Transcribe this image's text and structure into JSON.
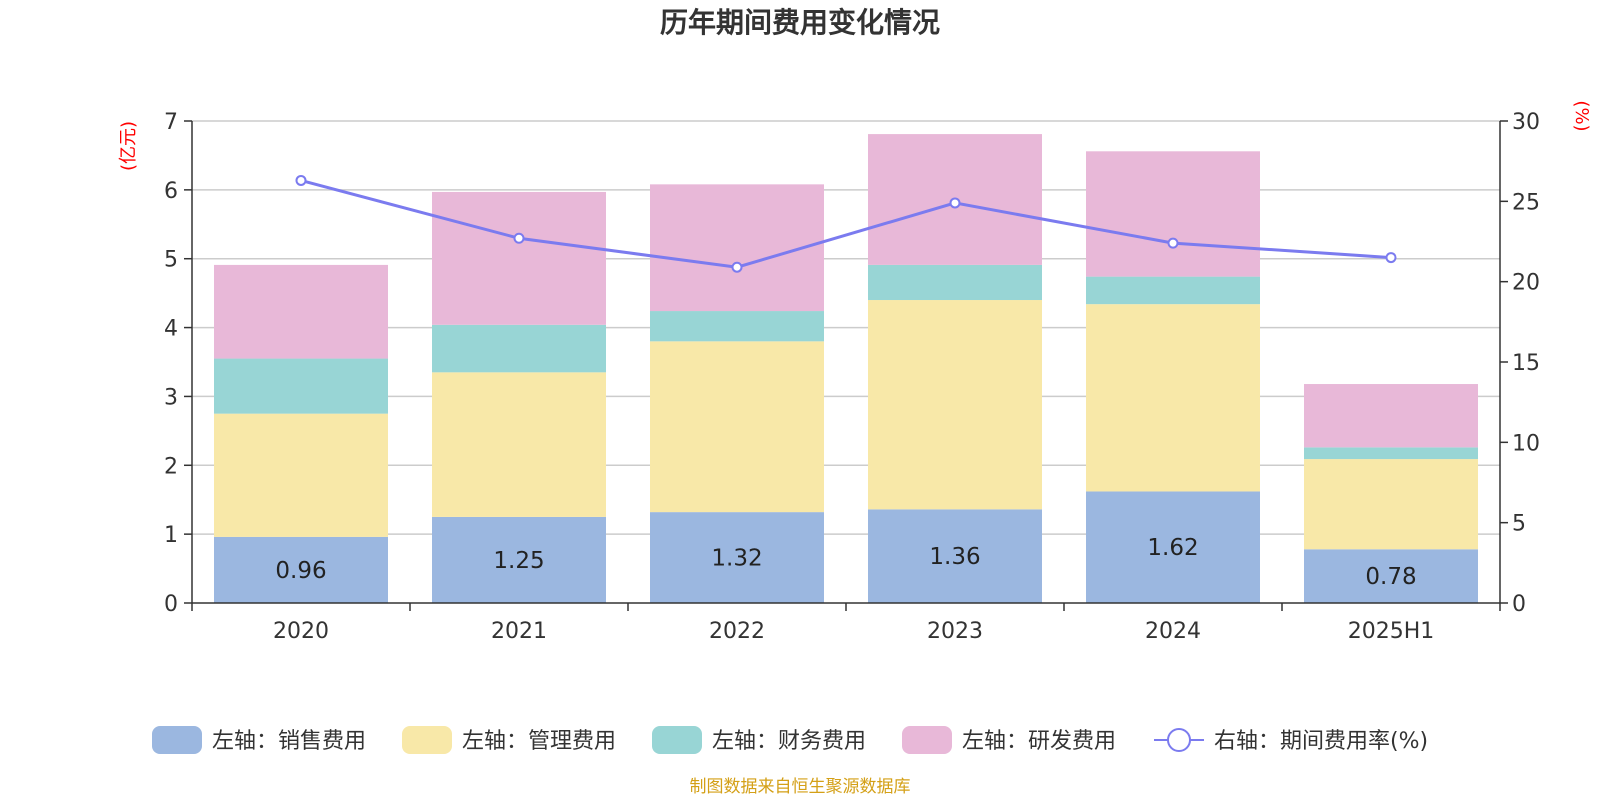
{
  "chart_data": {
    "type": "bar",
    "title": "历年期间费用变化情况",
    "left_unit": "(亿元)",
    "right_unit": "(%)",
    "categories": [
      "2020",
      "2021",
      "2022",
      "2023",
      "2024",
      "2025H1"
    ],
    "left_ylim": [
      0,
      7
    ],
    "left_ticks": [
      "0",
      "1",
      "2",
      "3",
      "4",
      "5",
      "6",
      "7"
    ],
    "right_ylim": [
      0,
      30
    ],
    "right_ticks": [
      "0",
      "5",
      "10",
      "15",
      "20",
      "25",
      "30"
    ],
    "series": [
      {
        "name": "左轴：销售费用",
        "kind": "bar",
        "axis": "left",
        "color": "#9bb7e0",
        "values": [
          0.96,
          1.25,
          1.32,
          1.36,
          1.62,
          0.78
        ],
        "labels": [
          "0.96",
          "1.25",
          "1.32",
          "1.36",
          "1.62",
          "0.78"
        ]
      },
      {
        "name": "左轴：管理费用",
        "kind": "bar",
        "axis": "left",
        "color": "#f8e8a8",
        "values": [
          1.79,
          2.1,
          2.48,
          3.04,
          2.72,
          1.31
        ]
      },
      {
        "name": "左轴：财务费用",
        "kind": "bar",
        "axis": "left",
        "color": "#98d5d5",
        "values": [
          0.8,
          0.69,
          0.44,
          0.51,
          0.4,
          0.17
        ]
      },
      {
        "name": "左轴：研发费用",
        "kind": "bar",
        "axis": "left",
        "color": "#e8b8d8",
        "values": [
          1.36,
          1.93,
          1.84,
          1.9,
          1.82,
          0.92
        ]
      },
      {
        "name": "右轴：期间费用率(%)",
        "kind": "line",
        "axis": "right",
        "color": "#7b7bef",
        "values": [
          26.3,
          22.7,
          20.9,
          24.9,
          22.4,
          21.5
        ]
      }
    ],
    "grid": true,
    "legend_position": "bottom"
  },
  "source_note": "制图数据来自恒生聚源数据库"
}
